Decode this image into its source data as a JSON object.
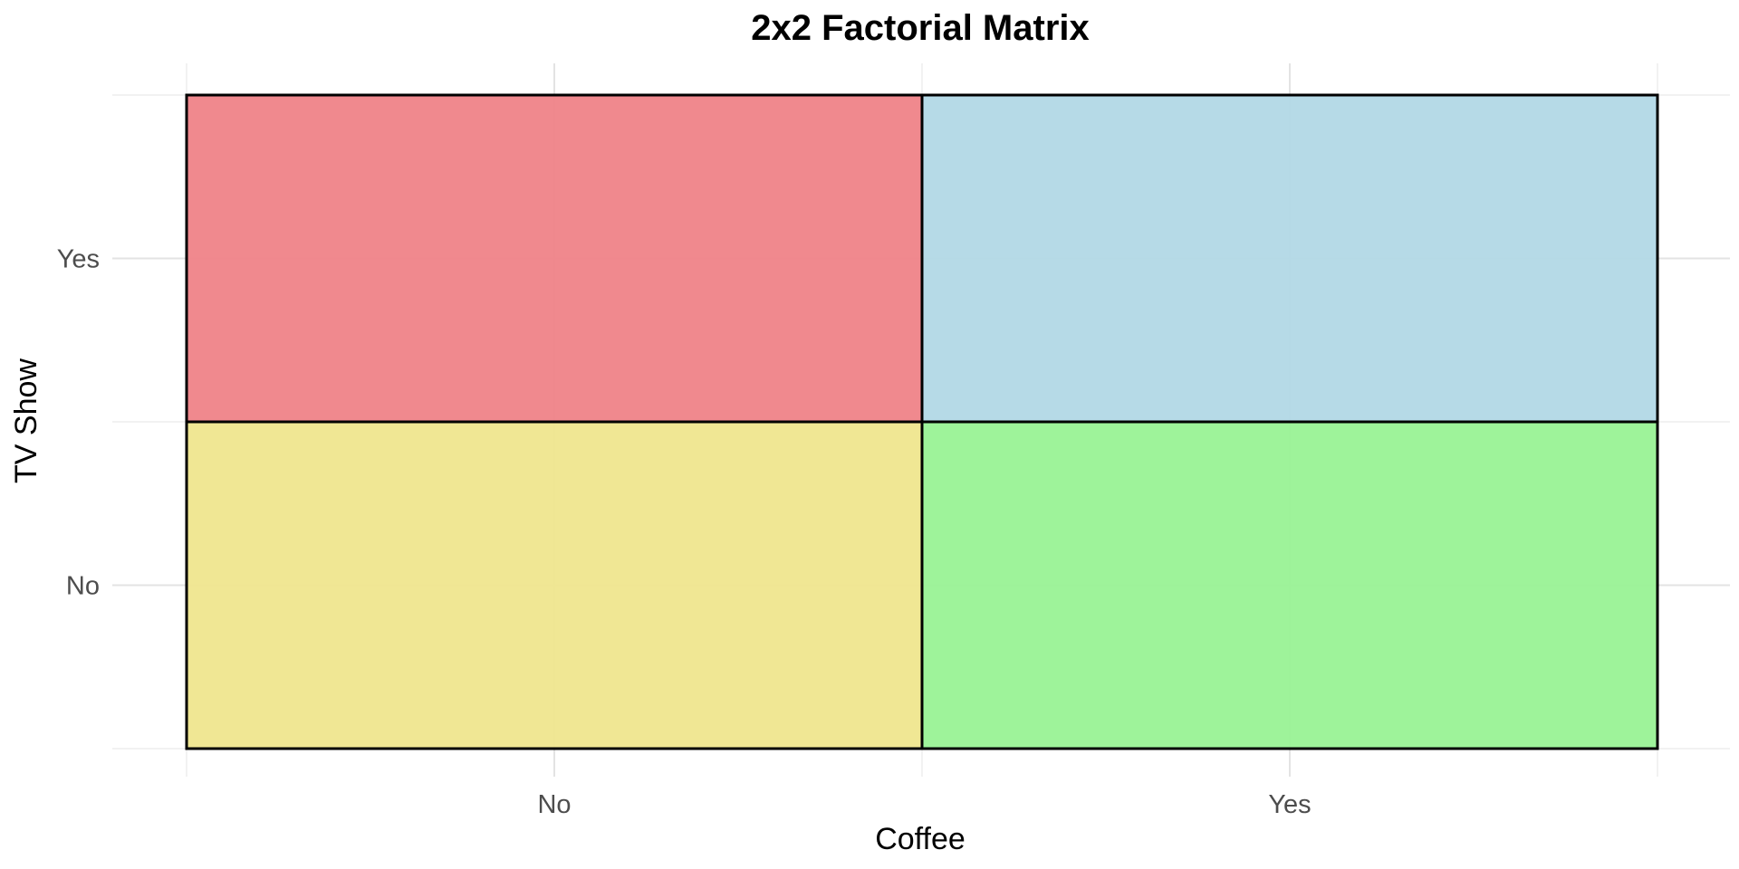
{
  "chart_data": {
    "type": "heatmap",
    "title": "2x2 Factorial Matrix",
    "xlabel": "Coffee",
    "ylabel": "TV Show",
    "x_categories": [
      "No",
      "Yes"
    ],
    "y_categories": [
      "No",
      "Yes"
    ],
    "cells": [
      {
        "x": "No",
        "y": "Yes",
        "color": "#ef8489"
      },
      {
        "x": "Yes",
        "y": "Yes",
        "color": "#b3d9e6"
      },
      {
        "x": "No",
        "y": "No",
        "color": "#efe690"
      },
      {
        "x": "Yes",
        "y": "No",
        "color": "#9af296"
      }
    ],
    "grid": true,
    "legend": "none"
  }
}
